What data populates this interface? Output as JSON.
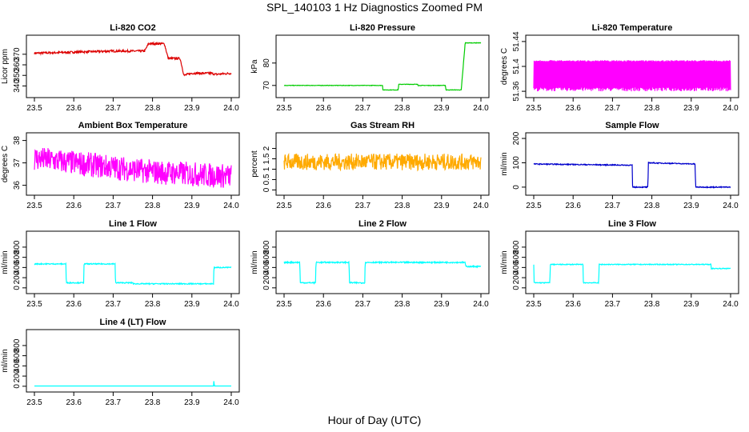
{
  "title": "SPL_140103  1 Hz Diagnostics Zoomed PM",
  "xlabel": "Hour of Day (UTC)",
  "chart_data": [
    {
      "type": "line",
      "title": "Li-820 CO2",
      "ylabel": "Licor ppm",
      "color": "#dd0000",
      "xlim": [
        23.5,
        24.0
      ],
      "ylim": [
        332,
        385
      ],
      "yticks": [
        340,
        350,
        360,
        370
      ],
      "xticks": [
        23.5,
        23.6,
        23.7,
        23.8,
        23.9,
        24.0
      ],
      "series": [
        {
          "x": [
            23.5,
            23.55,
            23.6,
            23.65,
            23.7,
            23.75,
            23.78,
            23.79,
            23.8,
            23.83,
            23.84,
            23.87,
            23.88,
            23.9,
            23.95,
            23.96,
            24.0
          ],
          "y": [
            371,
            371.5,
            372,
            372.5,
            373,
            373,
            373,
            380,
            380,
            380,
            366,
            366,
            350,
            352,
            352,
            351,
            352
          ],
          "noise": 1.0
        }
      ]
    },
    {
      "type": "line",
      "title": "Li-820 Pressure",
      "ylabel": "kPa",
      "color": "#00cc00",
      "xlim": [
        23.5,
        24.0
      ],
      "ylim": [
        66,
        91
      ],
      "yticks": [
        70,
        80
      ],
      "xticks": [
        23.5,
        23.6,
        23.7,
        23.8,
        23.9,
        24.0
      ],
      "series": [
        {
          "x": [
            23.5,
            23.75,
            23.751,
            23.79,
            23.791,
            23.84,
            23.84,
            23.91,
            23.911,
            23.95,
            23.96,
            24.0
          ],
          "y": [
            70,
            70,
            68,
            68,
            70.5,
            70.5,
            70,
            70,
            68,
            68,
            89,
            89
          ],
          "noise": 0.1
        }
      ]
    },
    {
      "type": "line",
      "title": "Li-820 Temperature",
      "ylabel": "degrees C",
      "color": "#ff00ff",
      "xlim": [
        23.5,
        24.0
      ],
      "ylim": [
        51.355,
        51.445
      ],
      "yticks": [
        51.36,
        51.4,
        51.44
      ],
      "xticks": [
        23.5,
        23.6,
        23.7,
        23.8,
        23.9,
        24.0
      ],
      "series": [
        {
          "x": [
            23.5,
            24.0
          ],
          "y": [
            51.39,
            51.39
          ],
          "band": [
            51.36,
            51.41
          ]
        }
      ]
    },
    {
      "type": "line",
      "title": "Ambient Box Temperature",
      "ylabel": "degrees C",
      "color": "#ff00ff",
      "xlim": [
        23.5,
        24.0
      ],
      "ylim": [
        35.7,
        38.2
      ],
      "yticks": [
        36.0,
        37.0,
        38.0
      ],
      "xticks": [
        23.5,
        23.6,
        23.7,
        23.8,
        23.9,
        24.0
      ],
      "series": [
        {
          "x": [
            23.5,
            23.6,
            23.7,
            23.8,
            23.9,
            24.0
          ],
          "y": [
            37.2,
            37.0,
            36.8,
            36.6,
            36.5,
            36.4
          ],
          "noise": 0.55
        }
      ]
    },
    {
      "type": "line",
      "title": "Gas Stream RH",
      "ylabel": "percent",
      "color": "#ffaa00",
      "xlim": [
        23.5,
        24.0
      ],
      "ylim": [
        -0.1,
        2.6
      ],
      "yticks": [
        0.0,
        0.5,
        1.0,
        1.5,
        2.0
      ],
      "xticks": [
        23.5,
        23.6,
        23.7,
        23.8,
        23.9,
        24.0
      ],
      "series": [
        {
          "x": [
            23.5,
            24.0
          ],
          "y": [
            1.35,
            1.35
          ],
          "noise": 0.4
        }
      ]
    },
    {
      "type": "line",
      "title": "Sample Flow",
      "ylabel": "ml/min",
      "color": "#0000cc",
      "xlim": [
        23.5,
        24.0
      ],
      "ylim": [
        -20,
        210
      ],
      "yticks": [
        0,
        100,
        200
      ],
      "xticks": [
        23.5,
        23.6,
        23.7,
        23.8,
        23.9,
        24.0
      ],
      "series": [
        {
          "x": [
            23.5,
            23.75,
            23.751,
            23.79,
            23.791,
            23.91,
            23.911,
            24.0
          ],
          "y": [
            95,
            90,
            0,
            0,
            100,
            95,
            0,
            0
          ],
          "noise": 2
        }
      ]
    },
    {
      "type": "line",
      "title": "Line 1 Flow",
      "ylabel": "ml/min",
      "color": "#00ffff",
      "xlim": [
        23.5,
        24.0
      ],
      "ylim": [
        -50,
        1050
      ],
      "yticks": [
        0,
        200,
        400,
        600,
        800
      ],
      "xticks": [
        23.5,
        23.6,
        23.7,
        23.8,
        23.9,
        24.0
      ],
      "series": [
        {
          "x": [
            23.5,
            23.58,
            23.581,
            23.625,
            23.626,
            23.705,
            23.706,
            23.75,
            23.75,
            23.955,
            23.956,
            24.0
          ],
          "y": [
            470,
            470,
            100,
            100,
            470,
            470,
            100,
            100,
            80,
            80,
            400,
            400
          ],
          "noise": 10
        }
      ]
    },
    {
      "type": "line",
      "title": "Line 2 Flow",
      "ylabel": "ml/min",
      "color": "#00ffff",
      "xlim": [
        23.5,
        24.0
      ],
      "ylim": [
        -50,
        1050
      ],
      "yticks": [
        0,
        200,
        400,
        600,
        800
      ],
      "xticks": [
        23.5,
        23.6,
        23.7,
        23.8,
        23.9,
        24.0
      ],
      "series": [
        {
          "x": [
            23.5,
            23.54,
            23.541,
            23.58,
            23.581,
            23.665,
            23.666,
            23.705,
            23.706,
            23.96,
            23.961,
            24.0
          ],
          "y": [
            500,
            500,
            100,
            100,
            500,
            500,
            100,
            100,
            500,
            500,
            420,
            420
          ],
          "noise": 12
        }
      ]
    },
    {
      "type": "line",
      "title": "Line 3 Flow",
      "ylabel": "ml/min",
      "color": "#00ffff",
      "xlim": [
        23.5,
        24.0
      ],
      "ylim": [
        -50,
        1050
      ],
      "yticks": [
        0,
        200,
        400,
        600,
        800
      ],
      "xticks": [
        23.5,
        23.6,
        23.7,
        23.8,
        23.9,
        24.0
      ],
      "series": [
        {
          "x": [
            23.5,
            23.5,
            23.541,
            23.542,
            23.625,
            23.626,
            23.665,
            23.666,
            23.95,
            23.951,
            24.0
          ],
          "y": [
            460,
            100,
            100,
            460,
            460,
            100,
            100,
            460,
            460,
            380,
            380
          ],
          "noise": 8
        }
      ]
    },
    {
      "type": "line",
      "title": "Line 4 (LT) Flow",
      "ylabel": "ml/min",
      "color": "#00ffff",
      "xlim": [
        23.5,
        24.0
      ],
      "ylim": [
        -50,
        1050
      ],
      "yticks": [
        0,
        200,
        400,
        600,
        800
      ],
      "xticks": [
        23.5,
        23.6,
        23.7,
        23.8,
        23.9,
        24.0
      ],
      "series": [
        {
          "x": [
            23.5,
            23.955,
            23.956,
            23.957,
            23.958,
            24.0
          ],
          "y": [
            5,
            5,
            130,
            5,
            5,
            5
          ],
          "noise": 0
        }
      ]
    }
  ]
}
